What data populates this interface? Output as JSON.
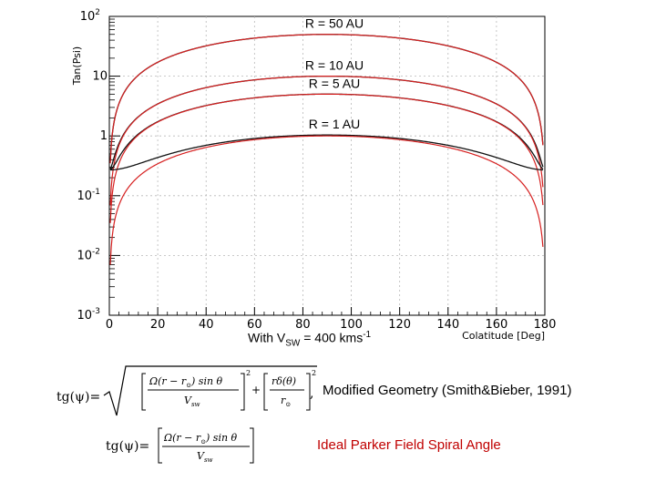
{
  "chart_data": {
    "type": "line",
    "xlabel": "Colatitude [Deg]",
    "ylabel": "Tan(Psi)",
    "xlim": [
      0,
      180
    ],
    "ylim": [
      0.001,
      100
    ],
    "yscale": "log",
    "x_ticks": [
      0,
      20,
      40,
      60,
      80,
      100,
      120,
      140,
      160,
      180
    ],
    "y_ticks": [
      {
        "value": 0.001,
        "base": "10",
        "exp": "-3"
      },
      {
        "value": 0.01,
        "base": "10",
        "exp": "-2"
      },
      {
        "value": 0.1,
        "base": "10",
        "exp": "-1"
      },
      {
        "value": 1,
        "base": "1",
        "exp": ""
      },
      {
        "value": 10,
        "base": "10",
        "exp": ""
      },
      {
        "value": 100,
        "base": "10",
        "exp": "2"
      }
    ],
    "series": [
      {
        "name": "R = 50 AU",
        "k": 50,
        "a": 0.16,
        "color_ideal": "#d62020",
        "color_modified": "#111111"
      },
      {
        "name": "R = 10 AU",
        "k": 10,
        "a": 0.27,
        "color_ideal": "#d62020",
        "color_modified": "#111111"
      },
      {
        "name": "R = 5 AU",
        "k": 5,
        "a": 0.27,
        "color_ideal": "#d62020",
        "color_modified": "#111111"
      },
      {
        "name": "R = 1 AU",
        "k": 1,
        "a": 0.27,
        "color_ideal": "#d62020",
        "color_modified": "#111111"
      }
    ]
  },
  "annotations": {
    "vsw_prefix": "With V",
    "vsw_sub": "SW",
    "vsw_mid": " = 400 kms",
    "vsw_sup": "-1"
  },
  "formulas": {
    "modified_prefix": "tg(ψ)=",
    "ideal_prefix": "tg(ψ)=",
    "modified_caption": "Modified Geometry (Smith&Bieber, 1991)",
    "ideal_caption": "Ideal Parker Field Spiral Angle",
    "caption_color": "#c00000",
    "eq_omega": "Ω(r − r",
    "eq_sun": "⊙",
    "eq_sin": ") sin θ",
    "eq_vsw_v": "V",
    "eq_vsw_sub": "sw",
    "eq_plus": "+",
    "eq_rdelta": "rδ(θ)",
    "eq_rsun": "r",
    "eq_sq": "2",
    "eq_comma": ","
  }
}
